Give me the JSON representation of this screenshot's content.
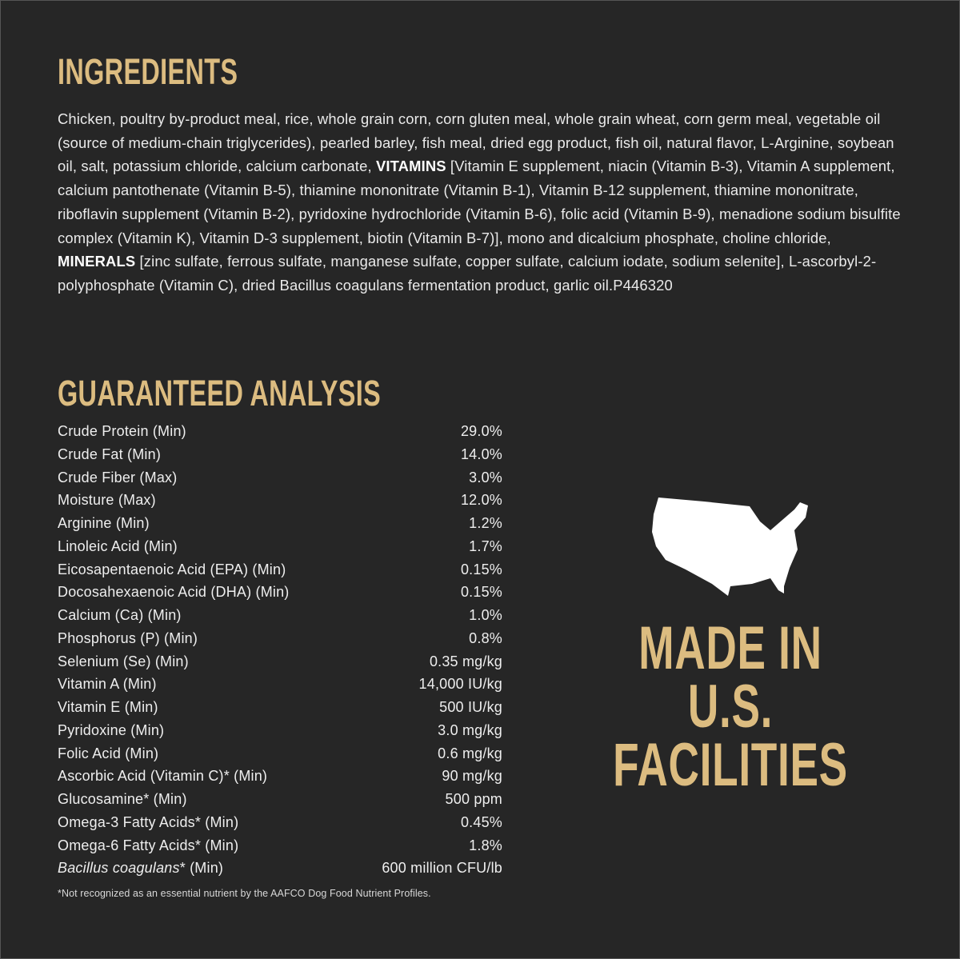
{
  "colors": {
    "background": "#262626",
    "accent": "#dcbc80",
    "text": "#eeeeee"
  },
  "ingredients": {
    "heading": "INGREDIENTS",
    "text1": "Chicken, poultry by-product meal, rice, whole grain corn, corn gluten meal, whole grain wheat, corn germ meal, vegetable oil (source of medium-chain triglycerides), pearled barley, fish meal, dried egg product, fish oil, natural flavor, L-Arginine, soybean oil, salt, potassium chloride, calcium carbonate, ",
    "bold1": "VITAMINS",
    "text2": " [Vitamin E supplement, niacin (Vitamin B-3), Vitamin A supplement, calcium pantothenate (Vitamin B-5), thiamine mononitrate (Vitamin B-1), Vitamin B-12 supplement, thiamine mononitrate, riboflavin supplement (Vitamin B-2), pyridoxine hydrochloride (Vitamin B-6), folic acid (Vitamin B-9), menadione sodium bisulfite complex (Vitamin K), Vitamin D-3 supplement, biotin (Vitamin B-7)], mono and dicalcium phosphate, choline chloride, ",
    "bold2": "MINERALS",
    "text3": " [zinc sulfate, ferrous sulfate, manganese sulfate, copper sulfate, calcium iodate, sodium selenite], L-ascorbyl-2-polyphosphate (Vitamin C), dried Bacillus coagulans fermentation product, garlic oil.",
    "code": "P446320"
  },
  "analysis": {
    "heading": "GUARANTEED ANALYSIS",
    "rows": [
      {
        "label": "Crude Protein (Min)",
        "value": "29.0%"
      },
      {
        "label": "Crude Fat (Min)",
        "value": "14.0%"
      },
      {
        "label": "Crude Fiber (Max)",
        "value": "3.0%"
      },
      {
        "label": "Moisture (Max)",
        "value": "12.0%"
      },
      {
        "label": "Arginine (Min)",
        "value": "1.2%"
      },
      {
        "label": "Linoleic Acid (Min)",
        "value": "1.7%"
      },
      {
        "label": "Eicosapentaenoic Acid (EPA) (Min)",
        "value": "0.15%"
      },
      {
        "label": "Docosahexaenoic Acid (DHA) (Min)",
        "value": "0.15%"
      },
      {
        "label": "Calcium (Ca) (Min)",
        "value": "1.0%"
      },
      {
        "label": "Phosphorus (P) (Min)",
        "value": "0.8%"
      },
      {
        "label": "Selenium (Se) (Min)",
        "value": "0.35 mg/kg"
      },
      {
        "label": "Vitamin A (Min)",
        "value": "14,000 IU/kg"
      },
      {
        "label": "Vitamin E (Min)",
        "value": "500 IU/kg"
      },
      {
        "label": "Pyridoxine (Min)",
        "value": "3.0 mg/kg"
      },
      {
        "label": "Folic Acid (Min)",
        "value": "0.6 mg/kg"
      },
      {
        "label": "Ascorbic Acid (Vitamin C)* (Min)",
        "value": "90 mg/kg"
      },
      {
        "label": "Glucosamine* (Min)",
        "value": "500 ppm"
      },
      {
        "label": "Omega-3 Fatty Acids* (Min)",
        "value": "0.45%"
      },
      {
        "label": "Omega-6 Fatty Acids* (Min)",
        "value": "1.8%"
      },
      {
        "label_italic": "Bacillus coagulans",
        "label": "* (Min)",
        "value": "600 million CFU/lb"
      }
    ],
    "footnote": "*Not recognized as an essential nutrient by the AAFCO Dog Food Nutrient Profiles."
  },
  "badge": {
    "icon": "usa-map-icon",
    "lines": [
      "MADE IN",
      "U.S.",
      "FACILITIES"
    ]
  }
}
